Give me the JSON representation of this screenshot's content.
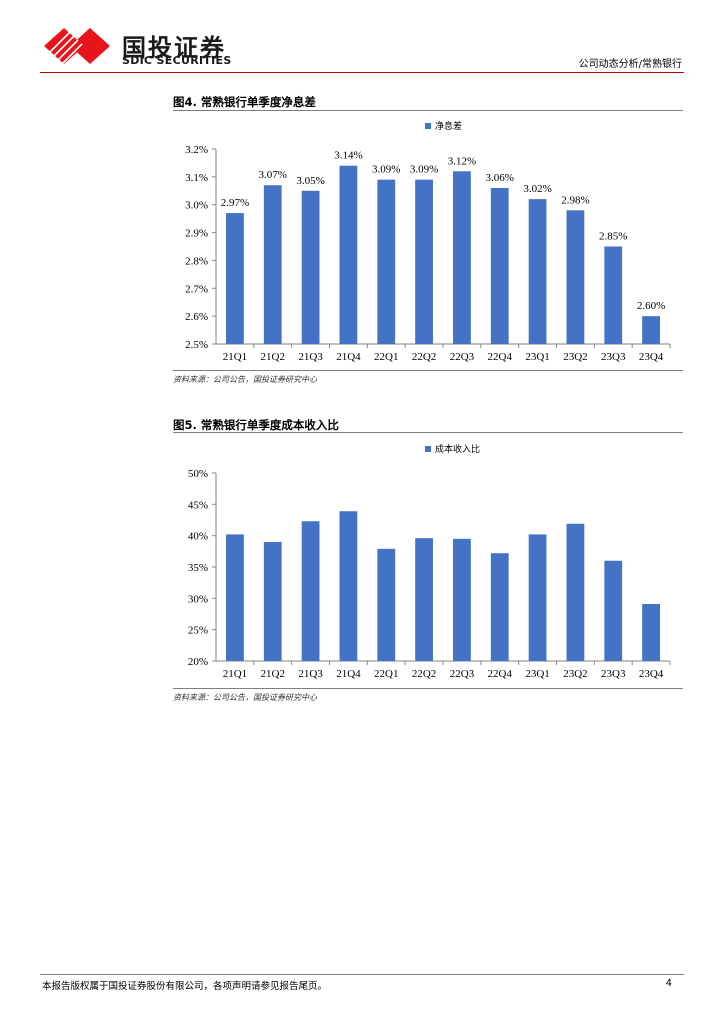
{
  "header": {
    "logo_cn": "国投证券",
    "logo_en": "SDIC SECURITIES",
    "report_type": "公司动态分析/常熟银行"
  },
  "figures": [
    {
      "title": "图4. 常熟银行单季度净息差",
      "source": "资料来源：公司公告，国投证券研究中心"
    },
    {
      "title": "图5. 常熟银行单季度成本收入比",
      "source": "资料来源：公司公告，国投证券研究中心"
    }
  ],
  "chart_data": [
    {
      "type": "bar",
      "categories": [
        "21Q1",
        "21Q2",
        "21Q3",
        "21Q4",
        "22Q1",
        "22Q2",
        "22Q3",
        "22Q4",
        "23Q1",
        "23Q2",
        "23Q3",
        "23Q4"
      ],
      "series": [
        {
          "name": "净息差",
          "values": [
            2.97,
            3.07,
            3.05,
            3.14,
            3.09,
            3.09,
            3.12,
            3.06,
            3.02,
            2.98,
            2.85,
            2.6
          ]
        }
      ],
      "data_labels": [
        "2.97%",
        "3.07%",
        "3.05%",
        "3.14%",
        "3.09%",
        "3.09%",
        "3.12%",
        "3.06%",
        "3.02%",
        "2.98%",
        "2.85%",
        "2.60%"
      ],
      "ylim": [
        2.5,
        3.2
      ],
      "yticks": [
        "2.5%",
        "2.6%",
        "2.7%",
        "2.8%",
        "2.9%",
        "3.0%",
        "3.1%",
        "3.2%"
      ],
      "ytick_values": [
        2.5,
        2.6,
        2.7,
        2.8,
        2.9,
        3.0,
        3.1,
        3.2
      ],
      "legend": "top-center",
      "color": "#4472c4",
      "grid": false
    },
    {
      "type": "bar",
      "categories": [
        "21Q1",
        "21Q2",
        "21Q3",
        "21Q4",
        "22Q1",
        "22Q2",
        "22Q3",
        "22Q4",
        "23Q1",
        "23Q2",
        "23Q3",
        "23Q4"
      ],
      "series": [
        {
          "name": "成本收入比",
          "values": [
            40.2,
            39.0,
            42.3,
            43.9,
            37.9,
            39.6,
            39.5,
            37.2,
            40.2,
            41.9,
            36.0,
            29.1
          ]
        }
      ],
      "ylim": [
        20,
        50
      ],
      "yticks": [
        "20%",
        "25%",
        "30%",
        "35%",
        "40%",
        "45%",
        "50%"
      ],
      "ytick_values": [
        20,
        25,
        30,
        35,
        40,
        45,
        50
      ],
      "legend": "top-center",
      "color": "#4472c4",
      "grid": false
    }
  ],
  "footer": {
    "disclaimer": "本报告版权属于国投证券股份有限公司，各项声明请参见报告尾页。",
    "page_number": "4"
  }
}
